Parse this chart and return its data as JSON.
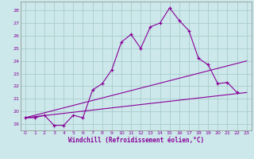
{
  "xlabel": "Windchill (Refroidissement éolien,°C)",
  "background_color": "#cce8ea",
  "grid_color": "#aacccc",
  "line_color": "#880099",
  "xlim": [
    -0.5,
    23.5
  ],
  "ylim": [
    18.5,
    28.7
  ],
  "xticks": [
    0,
    1,
    2,
    3,
    4,
    5,
    6,
    7,
    8,
    9,
    10,
    11,
    12,
    13,
    14,
    15,
    16,
    17,
    18,
    19,
    20,
    21,
    22,
    23
  ],
  "yticks": [
    19,
    20,
    21,
    22,
    23,
    24,
    25,
    26,
    27,
    28
  ],
  "series1_x": [
    0,
    1,
    2,
    3,
    4,
    5,
    6,
    7,
    8,
    9,
    10,
    11,
    12,
    13,
    14,
    15,
    16,
    17,
    18,
    19,
    20,
    21,
    22
  ],
  "series1_y": [
    19.5,
    19.5,
    19.7,
    18.9,
    18.9,
    19.7,
    19.5,
    21.7,
    22.2,
    23.3,
    25.5,
    26.1,
    25.0,
    26.7,
    27.0,
    28.2,
    27.2,
    26.4,
    24.2,
    23.7,
    22.2,
    22.3,
    21.5
  ],
  "series2_x": [
    0,
    23
  ],
  "series2_y": [
    19.5,
    24.0
  ],
  "series3_x": [
    0,
    23
  ],
  "series3_y": [
    19.5,
    21.5
  ]
}
